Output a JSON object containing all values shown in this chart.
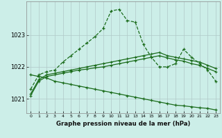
{
  "xlabel": "Graphe pression niveau de la mer (hPa)",
  "bg_color": "#cceee8",
  "grid_major_color": "#b0c8c8",
  "grid_minor_color": "#daf0ec",
  "line_color": "#1a6b1a",
  "x_hours": [
    0,
    1,
    2,
    3,
    4,
    5,
    6,
    7,
    8,
    9,
    10,
    11,
    12,
    13,
    14,
    15,
    16,
    17,
    18,
    19,
    20,
    21,
    22,
    23
  ],
  "curve1_dotted": [
    1021.3,
    1021.75,
    1021.85,
    1021.9,
    1022.15,
    1022.35,
    1022.55,
    1022.75,
    1022.95,
    1023.2,
    1023.75,
    1023.8,
    1023.45,
    1023.4,
    1022.7,
    1022.3,
    1022.0,
    1022.0,
    1022.1,
    1022.55,
    1022.3,
    1022.1,
    1021.9,
    1021.55
  ],
  "curve2_solid": [
    1021.15,
    1021.6,
    1021.75,
    1021.8,
    1021.85,
    1021.9,
    1021.95,
    1022.0,
    1022.05,
    1022.1,
    1022.15,
    1022.2,
    1022.25,
    1022.3,
    1022.35,
    1022.4,
    1022.45,
    1022.35,
    1022.3,
    1022.25,
    1022.2,
    1022.15,
    1022.05,
    1021.95
  ],
  "curve2b_solid": [
    1021.1,
    1021.55,
    1021.7,
    1021.75,
    1021.8,
    1021.85,
    1021.9,
    1021.93,
    1021.97,
    1022.0,
    1022.05,
    1022.1,
    1022.15,
    1022.2,
    1022.25,
    1022.3,
    1022.35,
    1022.28,
    1022.22,
    1022.18,
    1022.1,
    1022.05,
    1021.95,
    1021.85
  ],
  "curve3_diagonal": [
    1021.75,
    1021.7,
    1021.65,
    1021.55,
    1021.5,
    1021.45,
    1021.4,
    1021.35,
    1021.3,
    1021.25,
    1021.2,
    1021.15,
    1021.1,
    1021.05,
    1021.0,
    1020.95,
    1020.9,
    1020.85,
    1020.8,
    1020.78,
    1020.75,
    1020.72,
    1020.7,
    1020.65
  ],
  "ylim_min": 1020.55,
  "ylim_max": 1024.05,
  "yticks": [
    1021,
    1022,
    1023
  ],
  "xticks": [
    0,
    1,
    2,
    3,
    4,
    5,
    6,
    7,
    8,
    9,
    10,
    11,
    12,
    13,
    14,
    15,
    16,
    17,
    18,
    19,
    20,
    21,
    22,
    23
  ]
}
